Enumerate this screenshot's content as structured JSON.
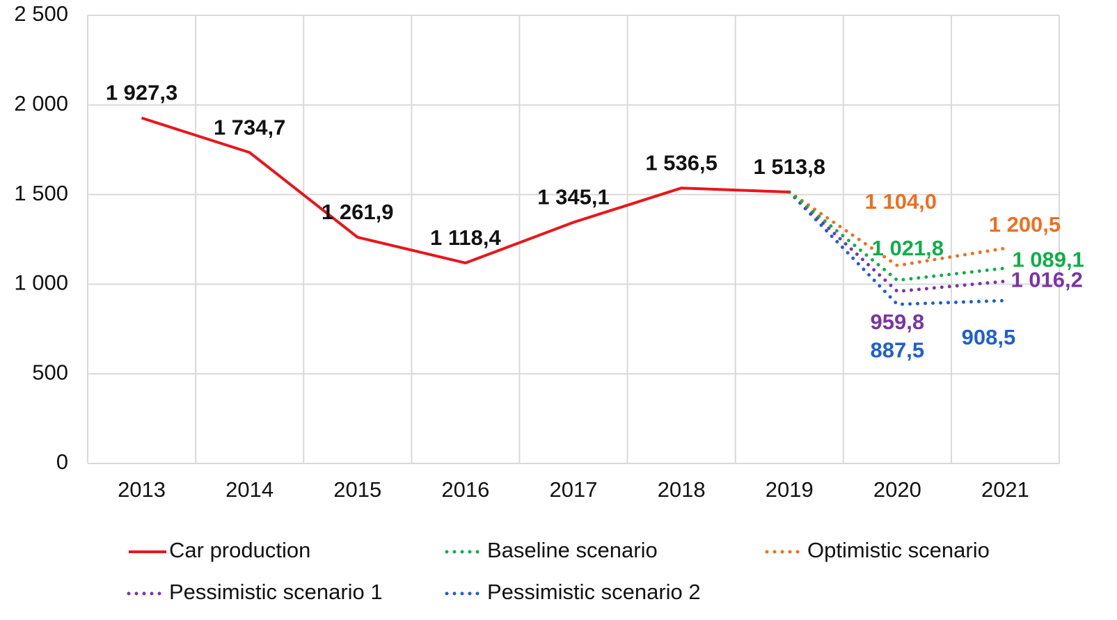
{
  "chart_data": {
    "type": "line",
    "categories": [
      "2013",
      "2014",
      "2015",
      "2016",
      "2017",
      "2018",
      "2019",
      "2020",
      "2021"
    ],
    "series": [
      {
        "name": "Car production",
        "color": "#e8161b",
        "line_style": "solid",
        "values": [
          1927.3,
          1734.7,
          1261.9,
          1118.4,
          1345.1,
          1536.5,
          1513.8,
          null,
          null
        ],
        "value_labels": [
          "1 927,3",
          "1 734,7",
          "1 261,9",
          "1 118,4",
          "1 345,1",
          "1 536,5",
          "1 513,8",
          null,
          null
        ]
      },
      {
        "name": "Baseline scenario",
        "color": "#12ad4b",
        "line_style": "dotted",
        "values": [
          null,
          null,
          null,
          null,
          null,
          null,
          1513.8,
          1021.8,
          1089.1
        ],
        "value_labels": [
          null,
          null,
          null,
          null,
          null,
          null,
          null,
          "1 021,8",
          "1 089,1"
        ]
      },
      {
        "name": "Optimistic scenario",
        "color": "#ee6f22",
        "line_style": "dotted",
        "values": [
          null,
          null,
          null,
          null,
          null,
          null,
          1513.8,
          1104.0,
          1200.5
        ],
        "value_labels": [
          null,
          null,
          null,
          null,
          null,
          null,
          null,
          "1 104,0",
          "1 200,5"
        ]
      },
      {
        "name": "Pessimistic scenario 1",
        "color": "#7a34a8",
        "line_style": "dotted",
        "values": [
          null,
          null,
          null,
          null,
          null,
          null,
          1513.8,
          959.8,
          1016.2
        ],
        "value_labels": [
          null,
          null,
          null,
          null,
          null,
          null,
          null,
          "959,8",
          "1 016,2"
        ]
      },
      {
        "name": "Pessimistic scenario 2",
        "color": "#1f5fd0",
        "line_style": "dotted",
        "values": [
          null,
          null,
          null,
          null,
          null,
          null,
          1513.8,
          887.5,
          908.5
        ],
        "value_labels": [
          null,
          null,
          null,
          null,
          null,
          null,
          null,
          "887,5",
          "908,5"
        ]
      }
    ],
    "ylim": [
      0,
      2500
    ],
    "yticks": [
      0,
      500,
      {
        "value": 1000,
        "label": "1 000"
      },
      {
        "value": 1500,
        "label": "1 500"
      },
      {
        "value": 2000,
        "label": "2 000"
      },
      {
        "value": 2500,
        "label": "2 500"
      }
    ],
    "grid": true
  }
}
